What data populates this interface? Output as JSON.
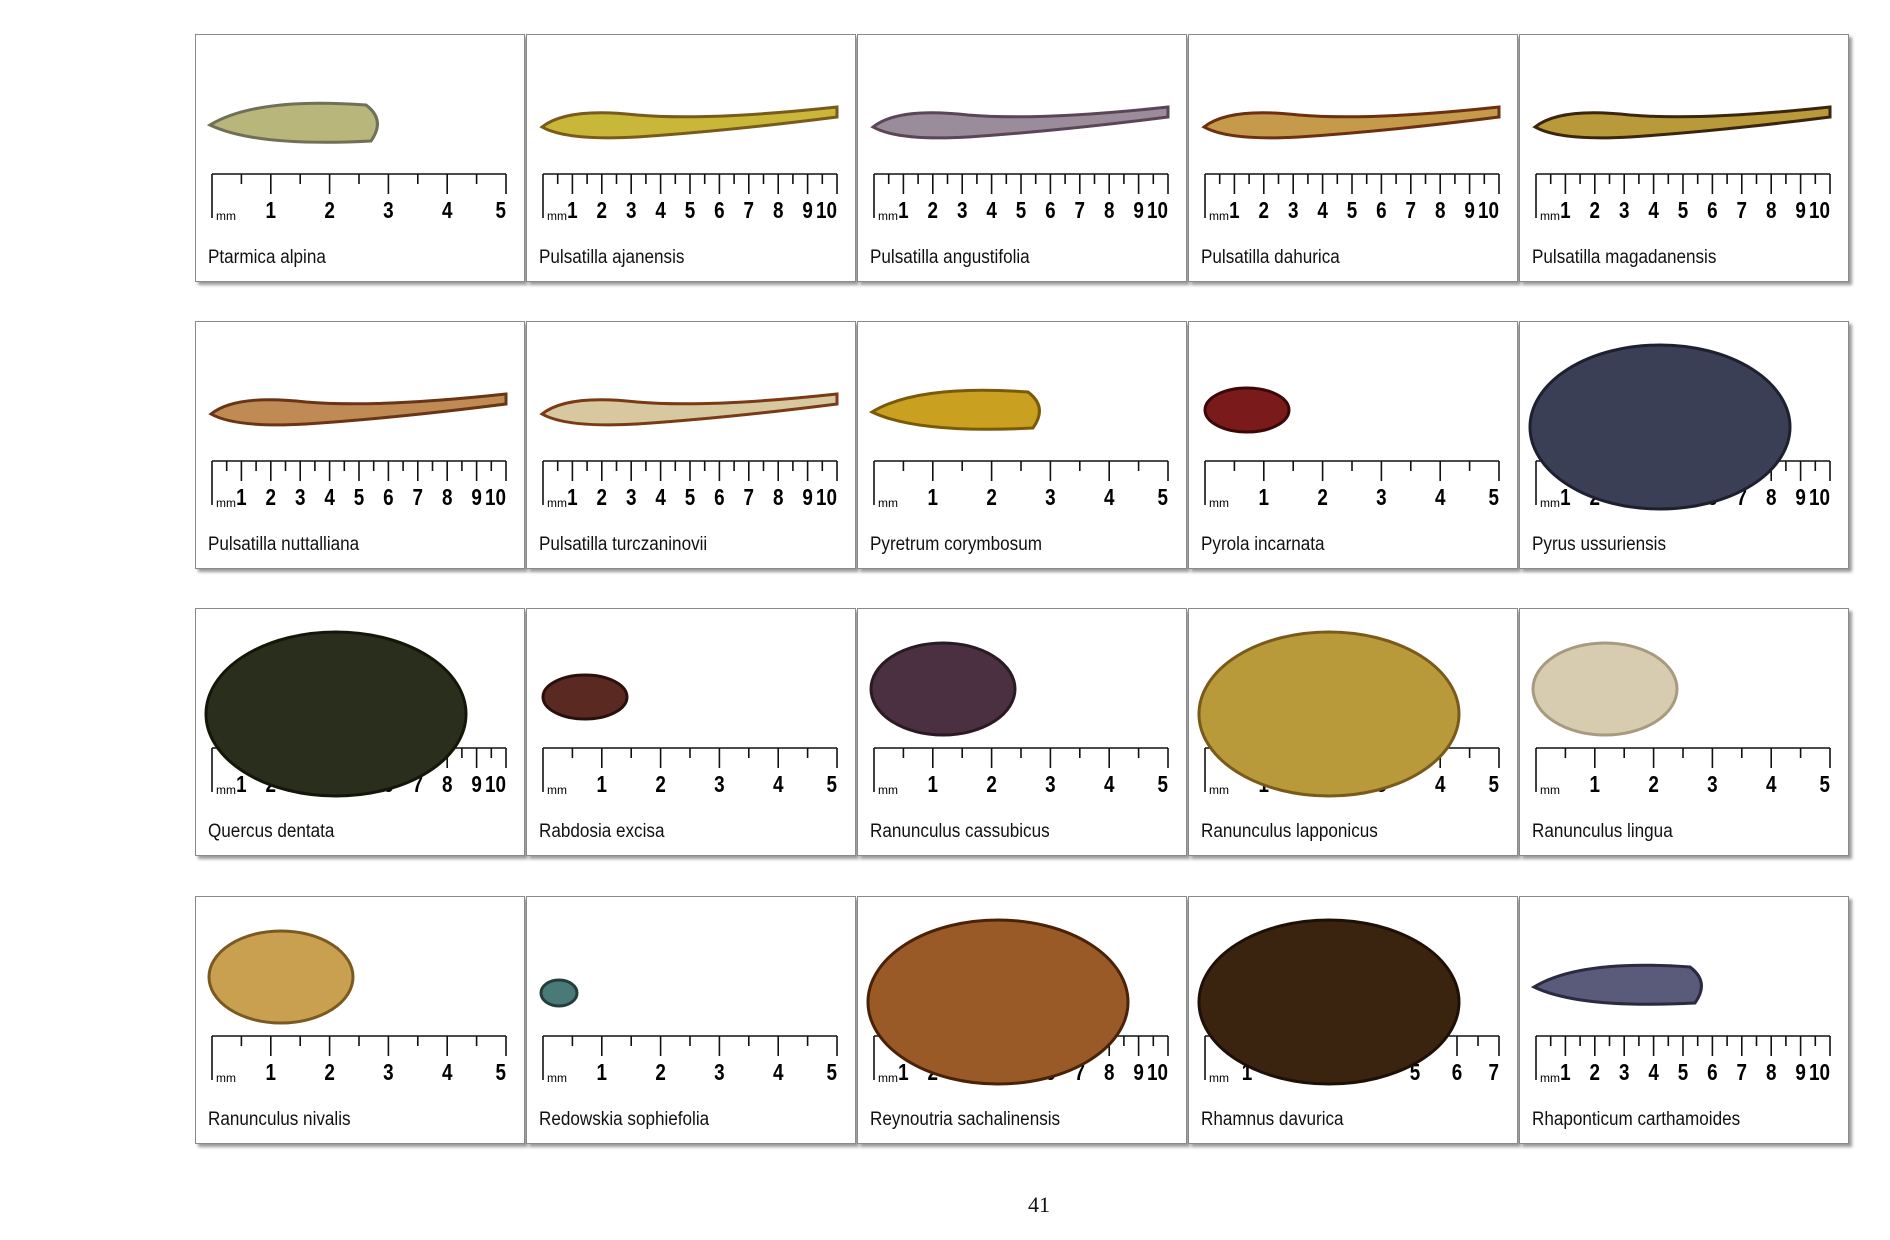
{
  "page_number": "41",
  "unit_label": "mm",
  "panels": [
    {
      "name": "Ptarmica alpina",
      "ruler_max": 5,
      "seed_color": "#b9b67c",
      "seed_dark": "#6f7057",
      "seed_shape": "oblong"
    },
    {
      "name": "Pulsatilla ajanensis",
      "ruler_max": 10,
      "seed_color": "#c9b73a",
      "seed_dark": "#7a5a1a",
      "seed_shape": "plume"
    },
    {
      "name": "Pulsatilla angustifolia",
      "ruler_max": 10,
      "seed_color": "#9a8c9a",
      "seed_dark": "#5b4658",
      "seed_shape": "plume"
    },
    {
      "name": "Pulsatilla dahurica",
      "ruler_max": 10,
      "seed_color": "#c59a4a",
      "seed_dark": "#6b3012",
      "seed_shape": "plume"
    },
    {
      "name": "Pulsatilla magadanensis",
      "ruler_max": 10,
      "seed_color": "#b89a3a",
      "seed_dark": "#3b250c",
      "seed_shape": "plume"
    },
    {
      "name": "Pulsatilla nuttalliana",
      "ruler_max": 10,
      "seed_color": "#c08a55",
      "seed_dark": "#6a3515",
      "seed_shape": "plume"
    },
    {
      "name": "Pulsatilla turczaninovii",
      "ruler_max": 10,
      "seed_color": "#d8c8a0",
      "seed_dark": "#7a3a15",
      "seed_shape": "plume"
    },
    {
      "name": "Pyretrum corymbosum",
      "ruler_max": 5,
      "seed_color": "#c9a020",
      "seed_dark": "#7a5a08",
      "seed_shape": "oblong"
    },
    {
      "name": "Pyrola incarnata",
      "ruler_max": 5,
      "seed_color": "#7a1a1a",
      "seed_dark": "#3a0808",
      "seed_shape": "small"
    },
    {
      "name": "Pyrus ussuriensis",
      "ruler_max": 10,
      "seed_color": "#3a3f55",
      "seed_dark": "#1e2030",
      "seed_shape": "big"
    },
    {
      "name": "Quercus dentata",
      "ruler_max": 10,
      "seed_color": "#2a2e1c",
      "seed_dark": "#141608",
      "seed_shape": "big"
    },
    {
      "name": "Rabdosia excisa",
      "ruler_max": 5,
      "seed_color": "#5a2a22",
      "seed_dark": "#2a100c",
      "seed_shape": "small"
    },
    {
      "name": "Ranunculus cassubicus",
      "ruler_max": 5,
      "seed_color": "#4a3040",
      "seed_dark": "#2a1a24",
      "seed_shape": "medium"
    },
    {
      "name": "Ranunculus lapponicus",
      "ruler_max": 5,
      "seed_color": "#b89a3a",
      "seed_dark": "#7a5a1a",
      "seed_shape": "big"
    },
    {
      "name": "Ranunculus lingua",
      "ruler_max": 5,
      "seed_color": "#d8ccb0",
      "seed_dark": "#a89a80",
      "seed_shape": "medium"
    },
    {
      "name": "Ranunculus nivalis",
      "ruler_max": 5,
      "seed_color": "#c8a050",
      "seed_dark": "#7a5a20",
      "seed_shape": "medium"
    },
    {
      "name": "Redowskia sophiefolia",
      "ruler_max": 5,
      "seed_color": "#4a7a78",
      "seed_dark": "#243e3c",
      "seed_shape": "tiny"
    },
    {
      "name": "Reynoutria sachalinensis",
      "ruler_max": 10,
      "seed_color": "#9a5a28",
      "seed_dark": "#4a2208",
      "seed_shape": "big"
    },
    {
      "name": "Rhamnus davurica",
      "ruler_max": 7,
      "seed_color": "#3a2410",
      "seed_dark": "#1e1006",
      "seed_shape": "big"
    },
    {
      "name": "Rhaponticum carthamoides",
      "ruler_max": 10,
      "seed_color": "#5a5a7a",
      "seed_dark": "#2a2a40",
      "seed_shape": "oblong"
    }
  ]
}
